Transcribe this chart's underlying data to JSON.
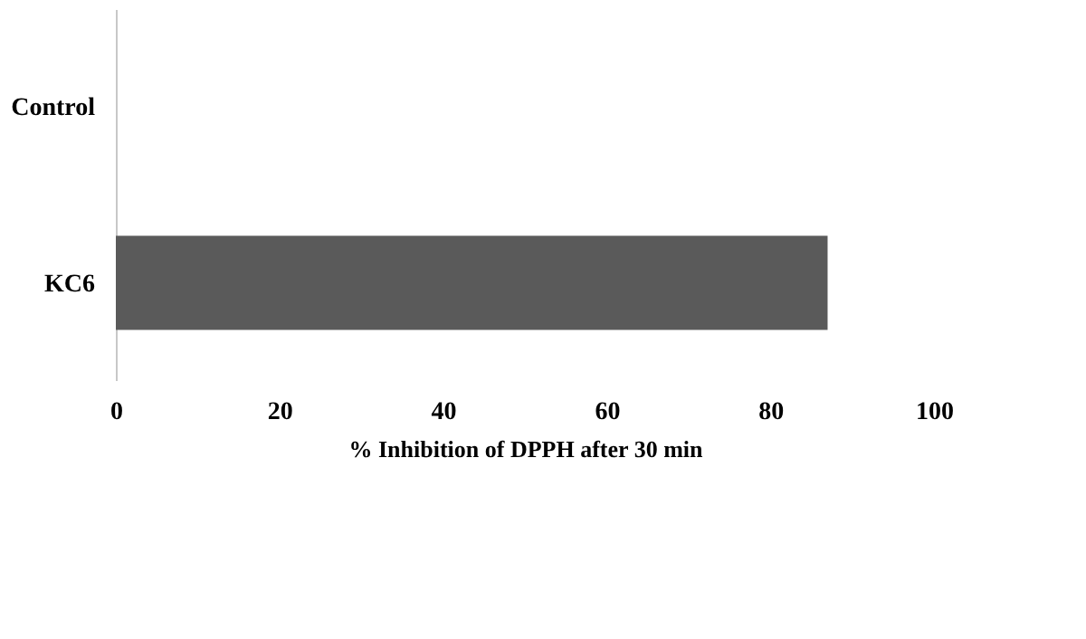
{
  "chart_data": {
    "type": "bar",
    "orientation": "horizontal",
    "xlabel": "% Inhibition  of DPPH after 30 min",
    "categories": [
      "Control",
      "KC6"
    ],
    "values": [
      0,
      87
    ],
    "color": "#5a5a5a",
    "xlim": [
      0,
      100
    ],
    "xticks": [
      0,
      20,
      40,
      60,
      80,
      100
    ],
    "grid": false
  }
}
